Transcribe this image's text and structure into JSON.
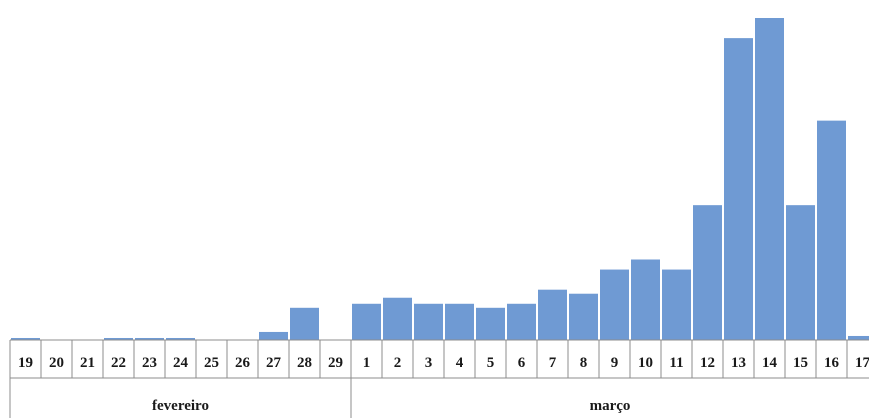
{
  "chart_data": {
    "type": "bar",
    "title": "",
    "xlabel": "",
    "ylabel": "",
    "ylim": [
      0,
      16
    ],
    "grid": false,
    "legend": "none",
    "bar_color": "#6f9ad3",
    "categories": [
      "19",
      "20",
      "21",
      "22",
      "23",
      "24",
      "25",
      "26",
      "27",
      "28",
      "29",
      "1",
      "2",
      "3",
      "4",
      "5",
      "6",
      "7",
      "8",
      "9",
      "10",
      "11",
      "12",
      "13",
      "14",
      "15",
      "16",
      "17"
    ],
    "values": [
      0.1,
      0,
      0,
      0.1,
      0.1,
      0.1,
      0,
      0,
      0.4,
      1.6,
      0,
      1.8,
      2.1,
      1.8,
      1.8,
      1.6,
      1.8,
      2.5,
      2.3,
      3.5,
      4.0,
      3.5,
      6.7,
      15.0,
      16.0,
      6.7,
      10.9,
      0.2
    ],
    "months": [
      {
        "label": "fevereiro",
        "first": 0,
        "last": 10
      },
      {
        "label": "março",
        "first": 11,
        "last": 27
      }
    ]
  }
}
